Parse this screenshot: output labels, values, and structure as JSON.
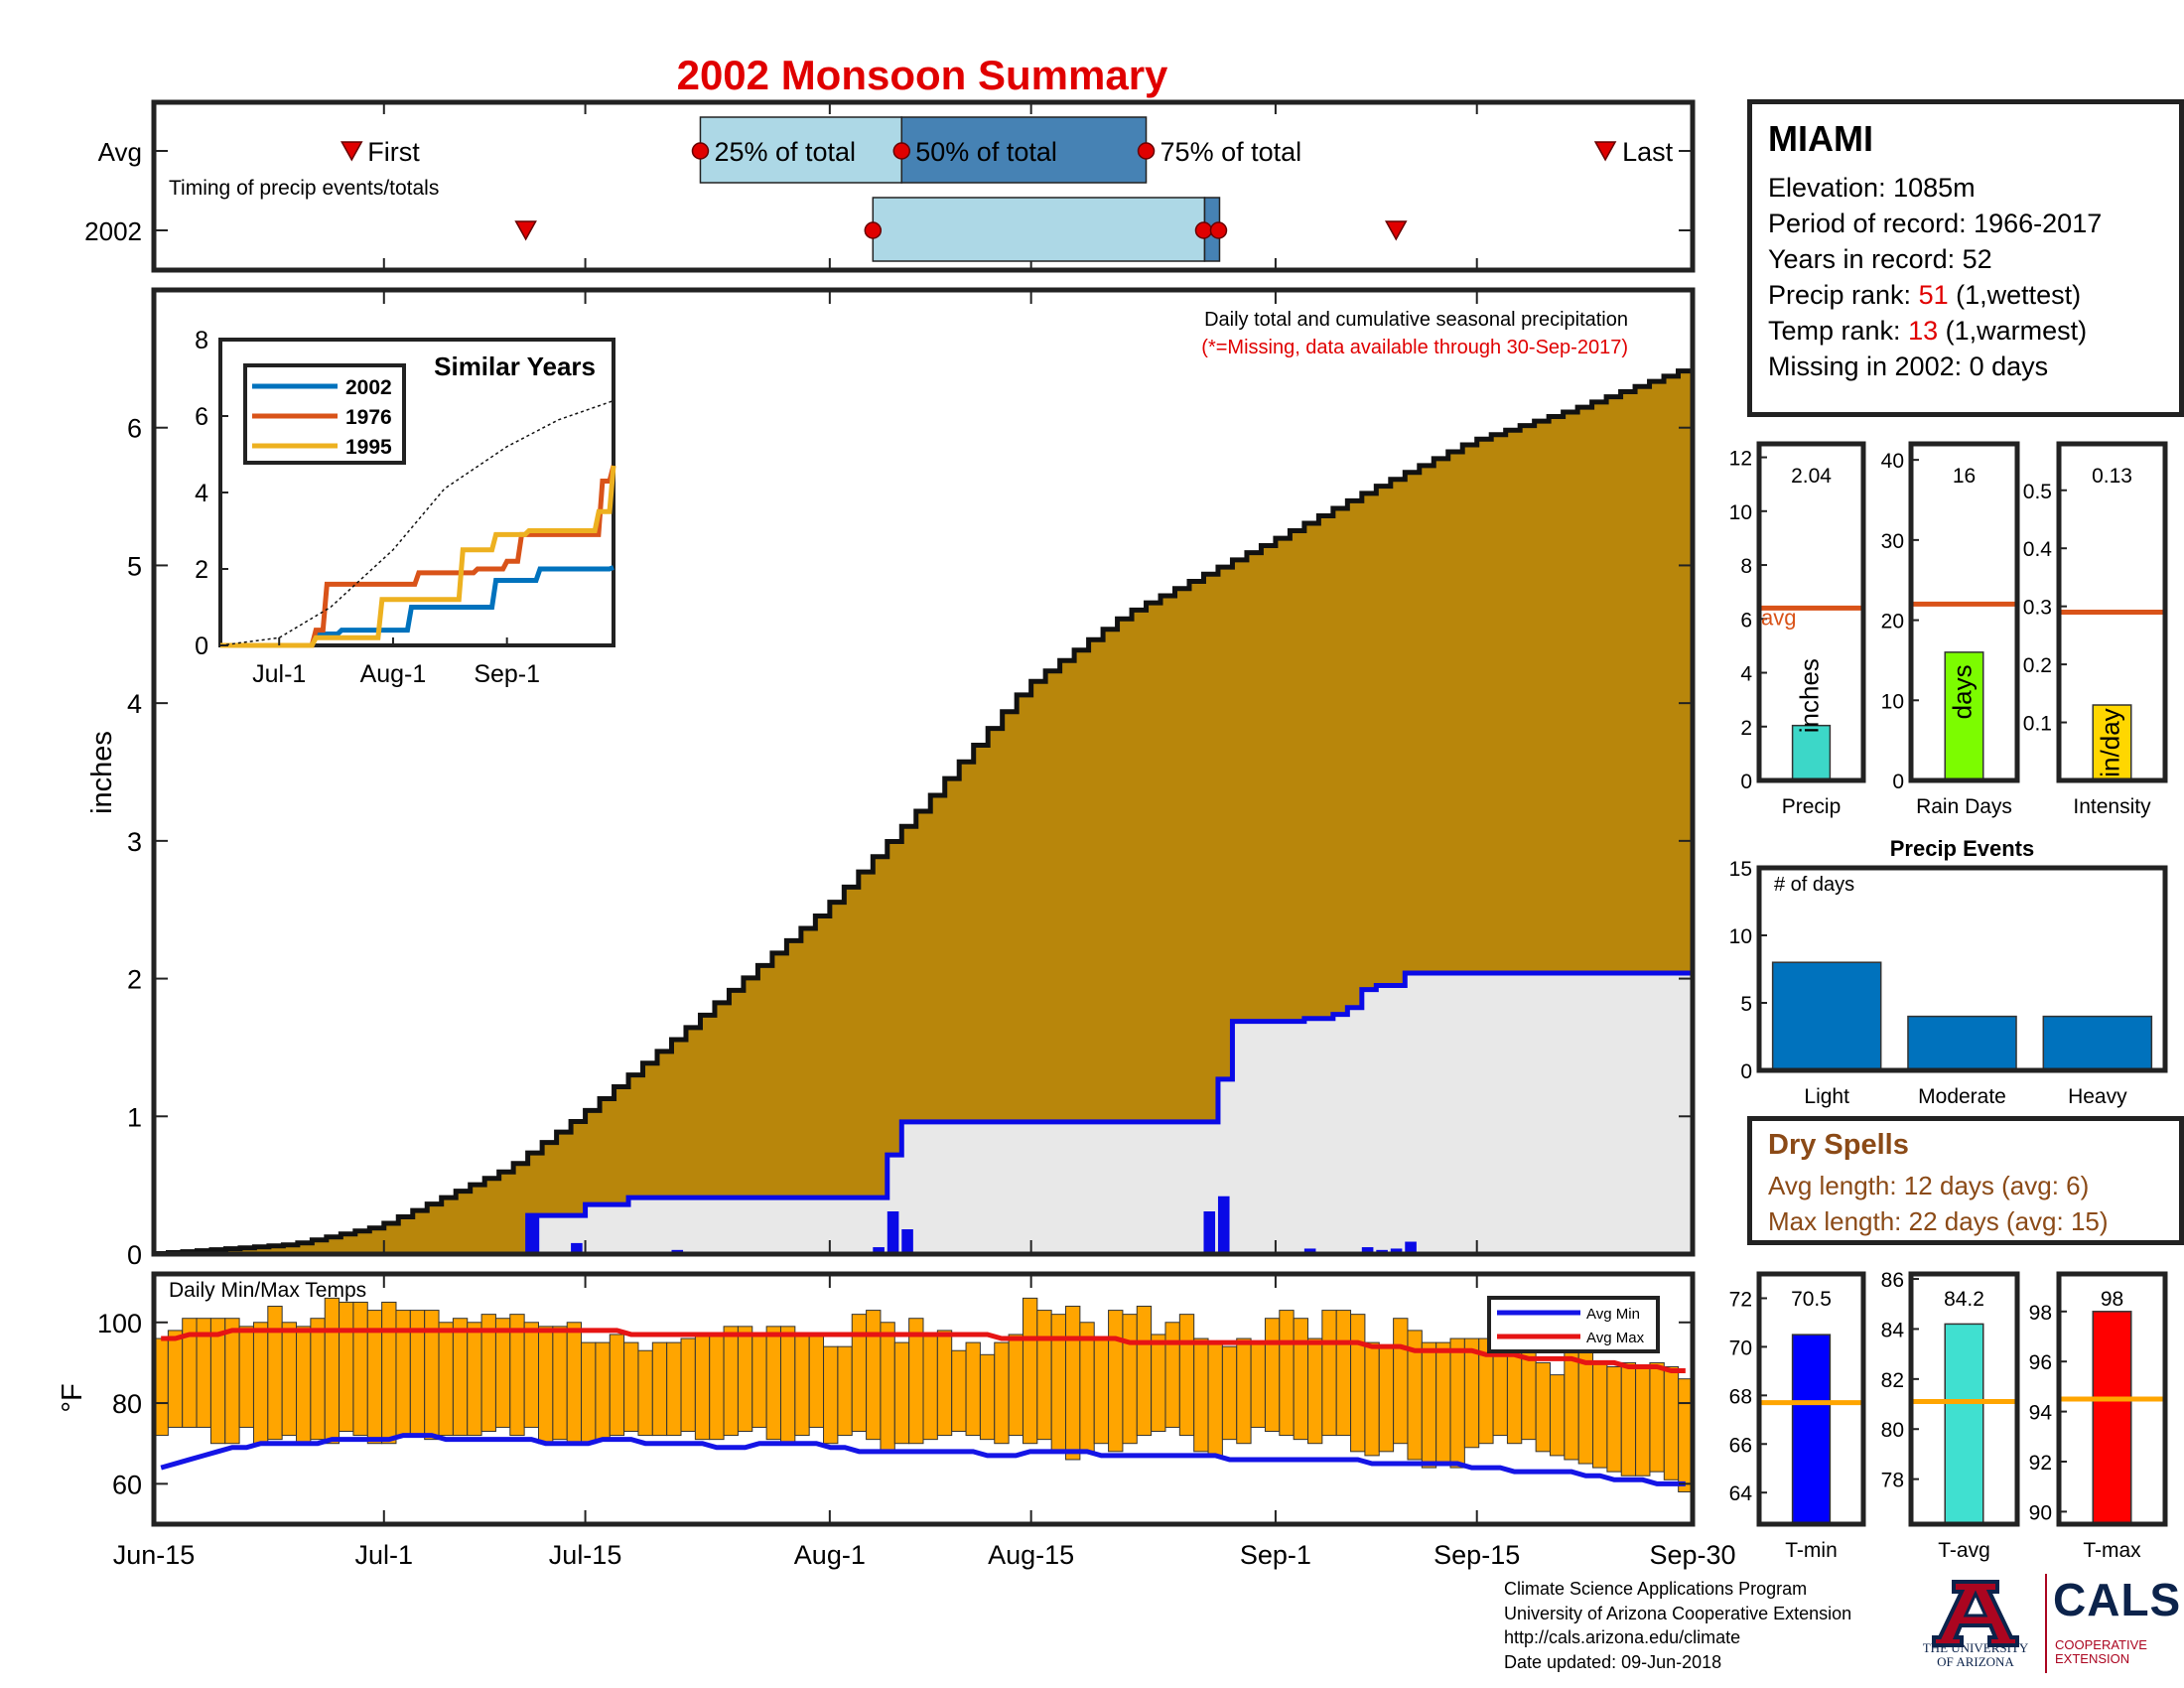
{
  "title": "2002 Monsoon Summary",
  "timing_panel": {
    "row_labels": [
      "Avg",
      "2002"
    ],
    "caption": "Timing of precip events/totals",
    "markers": [
      "First",
      "25% of total",
      "50% of total",
      "75% of total",
      "Last"
    ]
  },
  "main_panel": {
    "annotation": "Daily total and cumulative seasonal precipitation",
    "note": "(*=Missing, data available through 30-Sep-2017)",
    "ylabel": "inches"
  },
  "date_ticks": [
    "Jun-15",
    "Jul-1",
    "Jul-15",
    "Aug-1",
    "Aug-15",
    "Sep-1",
    "Sep-15",
    "Sep-30"
  ],
  "inset": {
    "title": "Similar Years",
    "x_ticks": [
      "Jul-1",
      "Aug-1",
      "Sep-1"
    ]
  },
  "temp_panel": {
    "title": "Daily Min/Max Temps",
    "ylabel": "°F",
    "legend": [
      "Avg Min",
      "Avg Max"
    ]
  },
  "station": {
    "name": "MIAMI",
    "elevation": "Elevation: 1085m",
    "period": "Period of record: 1966-2017",
    "years": "Years in record: 52",
    "precip_rank_label": "Precip rank: ",
    "precip_rank_value": "51",
    "precip_rank_note": " (1,wettest)",
    "temp_rank_label": "Temp rank: ",
    "temp_rank_value": "13",
    "temp_rank_note": " (1,warmest)",
    "missing": "Missing in 2002: 0 days"
  },
  "dry_spells": {
    "title": "Dry Spells",
    "avg_length": "Avg length: 12 days (avg: 6)",
    "max_length": "Max length: 22 days (avg: 15)"
  },
  "footer": {
    "line1": "Climate Science Applications Program",
    "line2": "University of Arizona Cooperative Extension",
    "line3": "http://cals.arizona.edu/climate",
    "line4": "Date updated: 09-Jun-2018"
  },
  "logos": {
    "ua_line1": "THE UNIVERSITY",
    "ua_line2": "OF ARIZONA",
    "cals": "CALS",
    "cals_line1": "COOPERATIVE",
    "cals_line2": "EXTENSION"
  },
  "colors": {
    "title": "#e00000",
    "cumulative_avg_fill": "#b8860b",
    "cumulative_2002_line": "#0a0ae6",
    "cumulative_2002_fill": "#e8e8e8",
    "daily_bar": "#0a0ae6",
    "temp_bar": "#ffa500",
    "avg_min": "#1414e6",
    "avg_max": "#e61414",
    "avg_line": "#d95319",
    "timing_light": "#add8e6",
    "timing_dark": "#4682b4",
    "y2002": "#0072bd",
    "y1976": "#d95319",
    "y1995": "#edb120"
  },
  "chart_data": [
    {
      "type": "line",
      "name": "timing",
      "rows": {
        "Avg": {
          "first": "Jun-30",
          "q25": "Jul-23",
          "q50": "Aug-6",
          "q75": "Aug-23",
          "last": "Sep-24"
        },
        "2002": {
          "first": "Jul-11",
          "q25": "Aug-4",
          "q50": "Aug-27",
          "q75": "Aug-27",
          "last": "Sep-10"
        }
      }
    },
    {
      "type": "area",
      "name": "cumulative precipitation",
      "ylabel": "inches",
      "ylim": [
        0,
        7
      ],
      "xlim": [
        "Jun-15",
        "Sep-30"
      ],
      "avg_cumulative": {
        "x": [
          "Jun-15",
          "Jun-25",
          "Jul-1",
          "Jul-10",
          "Jul-15",
          "Jul-22",
          "Aug-1",
          "Aug-8",
          "Aug-15",
          "Aug-22",
          "Sep-1",
          "Sep-8",
          "Sep-15",
          "Sep-22",
          "Sep-30"
        ],
        "y": [
          0.0,
          0.07,
          0.2,
          0.62,
          1.0,
          1.6,
          2.5,
          3.27,
          4.12,
          4.65,
          5.17,
          5.55,
          5.9,
          6.13,
          6.43
        ]
      },
      "cumulative_2002": {
        "x": [
          "Jun-15",
          "Jul-10",
          "Jul-11",
          "Jul-15",
          "Jul-18",
          "Aug-4",
          "Aug-5",
          "Aug-6",
          "Aug-27",
          "Aug-28",
          "Aug-29",
          "Sep-3",
          "Sep-5",
          "Sep-6",
          "Sep-7",
          "Sep-8",
          "Sep-10",
          "Sep-30"
        ],
        "y": [
          0.0,
          0.0,
          0.28,
          0.36,
          0.41,
          0.41,
          0.72,
          0.96,
          0.96,
          1.27,
          1.69,
          1.71,
          1.74,
          1.79,
          1.92,
          1.95,
          2.04,
          2.04
        ]
      },
      "daily_precip": {
        "x": [
          "Jul-11",
          "Jul-14",
          "Jul-21",
          "Aug-4",
          "Aug-5",
          "Aug-6",
          "Aug-27",
          "Aug-28",
          "Sep-3",
          "Sep-7",
          "Sep-8",
          "Sep-9",
          "Sep-10"
        ],
        "y": [
          0.28,
          0.08,
          0.03,
          0.05,
          0.31,
          0.18,
          0.31,
          0.42,
          0.04,
          0.05,
          0.03,
          0.04,
          0.09
        ]
      }
    },
    {
      "type": "line",
      "name": "Similar Years",
      "x_ticks": [
        "Jul-1",
        "Aug-1",
        "Sep-1"
      ],
      "ylim": [
        0,
        8
      ],
      "series": [
        {
          "name": "2002",
          "x": [
            "Jun-15",
            "Jul-11",
            "Jul-18",
            "Aug-4",
            "Aug-6",
            "Aug-27",
            "Aug-29",
            "Sep-10",
            "Sep-30"
          ],
          "y": [
            0,
            0.3,
            0.4,
            0.4,
            1.0,
            1.0,
            1.7,
            2.0,
            2.04
          ]
        },
        {
          "name": "1976",
          "x": [
            "Jun-15",
            "Jul-4",
            "Jul-11",
            "Jul-14",
            "Aug-5",
            "Aug-8",
            "Aug-20",
            "Aug-24",
            "Sep-1",
            "Sep-5",
            "Sep-25",
            "Sep-27",
            "Sep-30"
          ],
          "y": [
            0,
            0,
            0.4,
            1.6,
            1.6,
            1.9,
            1.9,
            2.0,
            2.2,
            2.9,
            2.9,
            4.3,
            4.7
          ]
        },
        {
          "name": "1995",
          "x": [
            "Jun-15",
            "Jul-6",
            "Jul-11",
            "Jul-27",
            "Jul-29",
            "Aug-14",
            "Aug-20",
            "Aug-27",
            "Aug-29",
            "Sep-7",
            "Sep-24",
            "Sep-26",
            "Sep-30"
          ],
          "y": [
            0,
            0,
            0.2,
            0.2,
            1.2,
            1.2,
            2.5,
            2.5,
            2.9,
            3.0,
            3.0,
            3.5,
            4.7
          ]
        },
        {
          "name": "avg",
          "x": [
            "Jun-15",
            "Jul-1",
            "Jul-15",
            "Aug-1",
            "Aug-15",
            "Sep-1",
            "Sep-15",
            "Sep-30"
          ],
          "y": [
            0,
            0.2,
            1.0,
            2.5,
            4.1,
            5.2,
            5.9,
            6.4
          ]
        }
      ]
    },
    {
      "type": "bar",
      "name": "Daily Min/Max Temps",
      "ylabel": "°F",
      "ylim": [
        50,
        112
      ],
      "note": "108 daily bars from Jun-15 to Sep-30; min and max values below",
      "tmin": [
        72,
        74,
        74,
        74,
        70,
        70,
        74,
        70,
        71,
        72,
        70,
        71,
        70,
        73,
        72,
        70,
        70,
        72,
        72,
        71,
        72,
        72,
        72,
        73,
        74,
        72,
        74,
        70,
        71,
        70,
        70,
        71,
        72,
        73,
        72,
        72,
        72,
        73,
        71,
        71,
        72,
        73,
        74,
        71,
        70,
        72,
        74,
        70,
        72,
        73,
        71,
        68,
        70,
        70,
        71,
        72,
        73,
        72,
        71,
        70,
        72,
        70,
        71,
        68,
        66,
        68,
        70,
        68,
        70,
        72,
        73,
        74,
        72,
        68,
        67,
        71,
        70,
        74,
        73,
        72,
        71,
        70,
        72,
        72,
        68,
        67,
        68,
        70,
        66,
        64,
        65,
        64,
        69,
        70,
        72,
        70,
        71,
        68,
        67,
        66,
        65,
        64,
        63,
        62,
        62,
        63,
        61,
        58
      ],
      "tmax": [
        96,
        98,
        101,
        101,
        101,
        101,
        99,
        100,
        104,
        100,
        99,
        101,
        106,
        105,
        105,
        103,
        105,
        103,
        103,
        103,
        100,
        101,
        100,
        102,
        101,
        102,
        100,
        99,
        99,
        100,
        95,
        95,
        97,
        95,
        93,
        95,
        95,
        96,
        97,
        97,
        99,
        99,
        97,
        99,
        99,
        97,
        97,
        94,
        94,
        102,
        103,
        100,
        95,
        101,
        97,
        98,
        93,
        95,
        92,
        95,
        97,
        106,
        103,
        102,
        104,
        100,
        96,
        103,
        102,
        104,
        97,
        100,
        102,
        96,
        95,
        94,
        96,
        95,
        101,
        103,
        101,
        96,
        103,
        103,
        102,
        95,
        94,
        101,
        98,
        95,
        95,
        96,
        96,
        96,
        100,
        96,
        94,
        90,
        87,
        95,
        98,
        90,
        89,
        90,
        89,
        90,
        89,
        86
      ],
      "avg_min": [
        64,
        65,
        66,
        67,
        68,
        69,
        69,
        70,
        70,
        70,
        70,
        70,
        71,
        71,
        71,
        71,
        71,
        72,
        72,
        72,
        71,
        71,
        71,
        71,
        71,
        71,
        71,
        70,
        70,
        70,
        70,
        71,
        71,
        71,
        70,
        70,
        70,
        70,
        70,
        69,
        69,
        69,
        70,
        70,
        70,
        70,
        70,
        69,
        69,
        68,
        68,
        68,
        68,
        68,
        68,
        68,
        68,
        68,
        67,
        67,
        67,
        68,
        68,
        68,
        68,
        68,
        67,
        67,
        67,
        67,
        67,
        67,
        67,
        67,
        67,
        66,
        66,
        66,
        66,
        66,
        66,
        66,
        66,
        66,
        66,
        65,
        65,
        65,
        65,
        65,
        65,
        65,
        64,
        64,
        64,
        63,
        63,
        63,
        63,
        63,
        62,
        62,
        61,
        61,
        61,
        60,
        60,
        60
      ],
      "avg_max": [
        96,
        96,
        97,
        97,
        97,
        98,
        98,
        98,
        98,
        98,
        98,
        98,
        98,
        98,
        98,
        98,
        98,
        98,
        98,
        98,
        98,
        98,
        98,
        98,
        98,
        98,
        98,
        98,
        98,
        98,
        98,
        98,
        98,
        97,
        97,
        97,
        97,
        97,
        97,
        97,
        97,
        97,
        97,
        97,
        97,
        97,
        97,
        97,
        97,
        97,
        97,
        97,
        97,
        97,
        97,
        97,
        97,
        97,
        97,
        96,
        96,
        96,
        96,
        96,
        96,
        96,
        96,
        96,
        95,
        95,
        95,
        95,
        95,
        95,
        95,
        95,
        95,
        95,
        95,
        95,
        95,
        95,
        95,
        95,
        95,
        94,
        94,
        94,
        93,
        93,
        93,
        93,
        93,
        92,
        92,
        92,
        91,
        91,
        91,
        91,
        90,
        90,
        90,
        89,
        89,
        89,
        88,
        88
      ]
    },
    {
      "type": "bar",
      "name": "Precip",
      "xlabel": "Precip",
      "axis_label": "inches",
      "avg_label": "avg",
      "ylim": [
        0,
        12.5
      ],
      "yticks": [
        0,
        2,
        4,
        6,
        8,
        10,
        12
      ],
      "value": 2.04,
      "value_label": "2.04",
      "avg": 6.4,
      "color": "#3cd7c8"
    },
    {
      "type": "bar",
      "name": "Rain Days",
      "xlabel": "Rain Days",
      "axis_label": "days",
      "ylim": [
        0,
        42
      ],
      "yticks": [
        0,
        10,
        20,
        30,
        40
      ],
      "value": 16,
      "value_label": "16",
      "avg": 22,
      "color": "#7cfc00"
    },
    {
      "type": "bar",
      "name": "Intensity",
      "xlabel": "Intensity",
      "axis_label": "in/day",
      "ylim": [
        0,
        0.58
      ],
      "yticks": [
        0.1,
        0.2,
        0.3,
        0.4,
        0.5
      ],
      "value": 0.13,
      "value_label": "0.13",
      "avg": 0.29,
      "color": "#ffd700"
    },
    {
      "type": "bar",
      "name": "Precip Events",
      "title": "Precip Events",
      "annotation": "# of days",
      "categories": [
        "Light",
        "Moderate",
        "Heavy"
      ],
      "values": [
        8,
        4,
        4
      ],
      "ylim": [
        0,
        15
      ],
      "yticks": [
        0,
        5,
        10,
        15
      ],
      "color": "#0072bd"
    },
    {
      "type": "bar",
      "name": "T-min",
      "xlabel": "T-min",
      "ylim": [
        62.7,
        73
      ],
      "yticks": [
        64,
        66,
        68,
        70,
        72
      ],
      "value": 70.5,
      "value_label": "70.5",
      "avg": 67.7,
      "color": "#0000ff"
    },
    {
      "type": "bar",
      "name": "T-avg",
      "xlabel": "T-avg",
      "ylim": [
        76.2,
        86.2
      ],
      "yticks": [
        78,
        80,
        82,
        84,
        86
      ],
      "value": 84.2,
      "value_label": "84.2",
      "avg": 81.1,
      "color": "#40e0d0"
    },
    {
      "type": "bar",
      "name": "T-max",
      "xlabel": "T-max",
      "ylim": [
        89.5,
        99.5
      ],
      "yticks": [
        90,
        92,
        94,
        96,
        98
      ],
      "value": 98,
      "value_label": "98",
      "avg": 94.5,
      "color": "#ff0000"
    }
  ]
}
